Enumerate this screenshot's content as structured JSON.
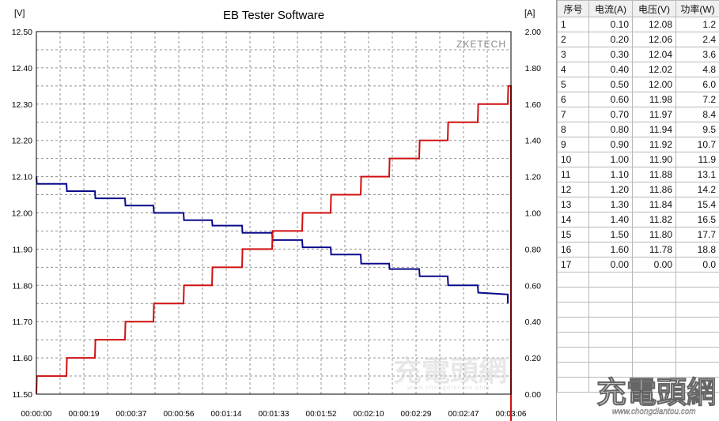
{
  "window": {
    "title": "EB Tester Software",
    "brand": "ZKETECH"
  },
  "watermark": {
    "logo_text": "充電頭網",
    "url": "www.chongdiantou.com"
  },
  "colors": {
    "voltage": "#0a0a8c",
    "current": "#d01010",
    "grid": "#909090",
    "axis": "#000000"
  },
  "chart_data": {
    "type": "line",
    "title": "EB Tester Software",
    "xlabel": "",
    "left_axis": {
      "unit_label": "[V]",
      "range": [
        11.5,
        12.5
      ],
      "ticks": [
        "11.50",
        "11.60",
        "11.70",
        "11.80",
        "11.90",
        "12.00",
        "12.10",
        "12.20",
        "12.30",
        "12.40",
        "12.50"
      ]
    },
    "right_axis": {
      "unit_label": "[A]",
      "range": [
        0,
        2.0
      ],
      "ticks": [
        "0.00",
        "0.20",
        "0.40",
        "0.60",
        "0.80",
        "1.00",
        "1.20",
        "1.40",
        "1.60",
        "1.80",
        "2.00"
      ]
    },
    "x_range_seconds": [
      0,
      186
    ],
    "x_ticks": [
      "00:00:00",
      "00:00:19",
      "00:00:37",
      "00:00:56",
      "00:01:14",
      "00:01:33",
      "00:01:52",
      "00:02:10",
      "00:02:29",
      "00:02:47",
      "00:03:06"
    ],
    "grid": true,
    "series": [
      {
        "axis": "left",
        "points": [
          [
            0,
            12.1
          ],
          [
            0.3,
            12.08
          ],
          [
            19,
            12.08
          ],
          [
            19.3,
            12.06
          ],
          [
            37,
            12.06
          ],
          [
            37.3,
            12.04
          ],
          [
            56,
            12.04
          ],
          [
            56.3,
            12.02
          ],
          [
            74,
            12.02
          ],
          [
            74.3,
            12.0
          ],
          [
            93,
            12.0
          ],
          [
            93.3,
            11.98
          ],
          [
            111,
            11.98
          ],
          [
            111.3,
            11.965
          ],
          [
            130,
            11.965
          ],
          [
            130.3,
            11.945
          ],
          [
            149,
            11.945
          ],
          [
            149.3,
            11.925
          ],
          [
            168,
            11.925
          ],
          [
            168.3,
            11.905
          ],
          [
            186,
            11.905
          ],
          [
            186.3,
            11.885
          ],
          [
            205,
            11.885
          ],
          [
            205.3,
            11.86
          ],
          [
            223,
            11.86
          ],
          [
            223.3,
            11.845
          ],
          [
            242,
            11.845
          ],
          [
            242.3,
            11.825
          ],
          [
            260,
            11.825
          ],
          [
            260.3,
            11.8
          ],
          [
            279,
            11.8
          ],
          [
            279.3,
            11.78
          ],
          [
            298,
            11.775
          ],
          [
            298,
            11.75
          ]
        ]
      },
      {
        "axis": "right",
        "points": [
          [
            0,
            0
          ],
          [
            0.3,
            0.1
          ],
          [
            19,
            0.1
          ],
          [
            19.3,
            0.2
          ],
          [
            37,
            0.2
          ],
          [
            37.3,
            0.3
          ],
          [
            56,
            0.3
          ],
          [
            56.3,
            0.4
          ],
          [
            74,
            0.4
          ],
          [
            74.3,
            0.5
          ],
          [
            93,
            0.5
          ],
          [
            93.3,
            0.6
          ],
          [
            111,
            0.6
          ],
          [
            111.3,
            0.7
          ],
          [
            130,
            0.7
          ],
          [
            130.3,
            0.8
          ],
          [
            149,
            0.8
          ],
          [
            149.3,
            0.9
          ],
          [
            168,
            0.9
          ],
          [
            168.3,
            1.0
          ],
          [
            186,
            1.0
          ],
          [
            186.3,
            1.1
          ],
          [
            205,
            1.1
          ],
          [
            205.3,
            1.2
          ],
          [
            223,
            1.2
          ],
          [
            223.3,
            1.3
          ],
          [
            242,
            1.3
          ],
          [
            242.3,
            1.4
          ],
          [
            260,
            1.4
          ],
          [
            260.3,
            1.5
          ],
          [
            279,
            1.5
          ],
          [
            279.3,
            1.6
          ],
          [
            298,
            1.6
          ],
          [
            298.3,
            1.7
          ],
          [
            300,
            1.7
          ],
          [
            300,
            -0.2
          ]
        ]
      }
    ]
  },
  "table": {
    "headers": [
      "序号",
      "电流(A)",
      "电压(V)",
      "功率(W)"
    ],
    "rows": [
      [
        "1",
        "0.10",
        "12.08",
        "1.2"
      ],
      [
        "2",
        "0.20",
        "12.06",
        "2.4"
      ],
      [
        "3",
        "0.30",
        "12.04",
        "3.6"
      ],
      [
        "4",
        "0.40",
        "12.02",
        "4.8"
      ],
      [
        "5",
        "0.50",
        "12.00",
        "6.0"
      ],
      [
        "6",
        "0.60",
        "11.98",
        "7.2"
      ],
      [
        "7",
        "0.70",
        "11.97",
        "8.4"
      ],
      [
        "8",
        "0.80",
        "11.94",
        "9.5"
      ],
      [
        "9",
        "0.90",
        "11.92",
        "10.7"
      ],
      [
        "10",
        "1.00",
        "11.90",
        "11.9"
      ],
      [
        "11",
        "1.10",
        "11.88",
        "13.1"
      ],
      [
        "12",
        "1.20",
        "11.86",
        "14.2"
      ],
      [
        "13",
        "1.30",
        "11.84",
        "15.4"
      ],
      [
        "14",
        "1.40",
        "11.82",
        "16.5"
      ],
      [
        "15",
        "1.50",
        "11.80",
        "17.7"
      ],
      [
        "16",
        "1.60",
        "11.78",
        "18.8"
      ],
      [
        "17",
        "0.00",
        "0.00",
        "0.0"
      ]
    ],
    "blank_rows": 8
  }
}
